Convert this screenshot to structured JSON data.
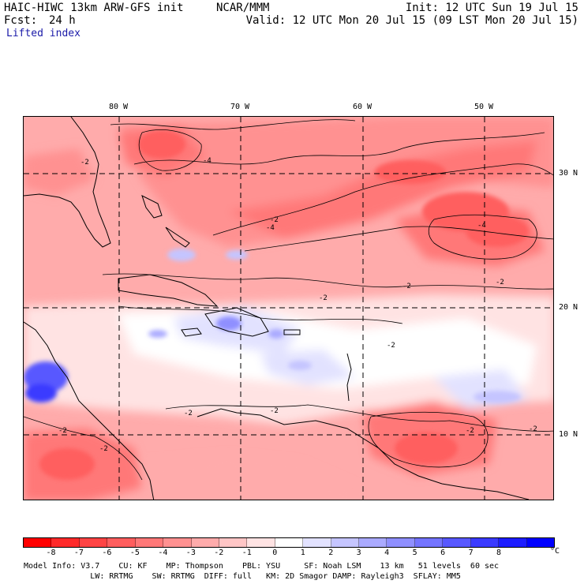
{
  "header": {
    "model": "HAIC-HIWC 13km ARW-GFS init",
    "center": "NCAR/MMM",
    "init": "Init: 12 UTC Sun 19 Jul 15",
    "fcst_label": "Fcst:",
    "fcst_value": "24 h",
    "valid": "Valid: 12 UTC Mon 20 Jul 15 (09 LST Mon 20 Jul 15)",
    "field": "Lifted index"
  },
  "map": {
    "lon_labels": [
      "80 W",
      "70 W",
      "60 W",
      "50 W"
    ],
    "lat_labels": [
      "30 N",
      "20 N",
      "10 N"
    ],
    "contour_labels": [
      "-4",
      "-2",
      "-2",
      "-2",
      "-4",
      "-2",
      "-2",
      "-4",
      "-2",
      "-2",
      "-2",
      "-2",
      "-2",
      "-2",
      "-2"
    ]
  },
  "colorbar": {
    "ticks": [
      "-8",
      "-7",
      "-6",
      "-5",
      "-4",
      "-3",
      "-2",
      "-1",
      "0",
      "1",
      "2",
      "3",
      "4",
      "5",
      "6",
      "7",
      "8"
    ],
    "unit": "°C",
    "colors": [
      "#ff0000",
      "#ff2a2a",
      "#ff4444",
      "#ff5e5e",
      "#ff7878",
      "#ff9191",
      "#ffabab",
      "#ffc6c6",
      "#ffe3e3",
      "#ffffff",
      "#e2e2ff",
      "#c5c5ff",
      "#aaaaff",
      "#8f8fff",
      "#7474ff",
      "#5858ff",
      "#3a3aff",
      "#1c1cff",
      "#0000ff"
    ]
  },
  "footer": {
    "line1": "Model Info: V3.7    CU: KF    MP: Thompson    PBL: YSU     SF: Noah LSM    13 km   51 levels  60 sec",
    "line2": "              LW: RRTMG    SW: RRTMG  DIFF: full   KM: 2D Smagor DAMP: Rayleigh3  SFLAY: MM5"
  }
}
